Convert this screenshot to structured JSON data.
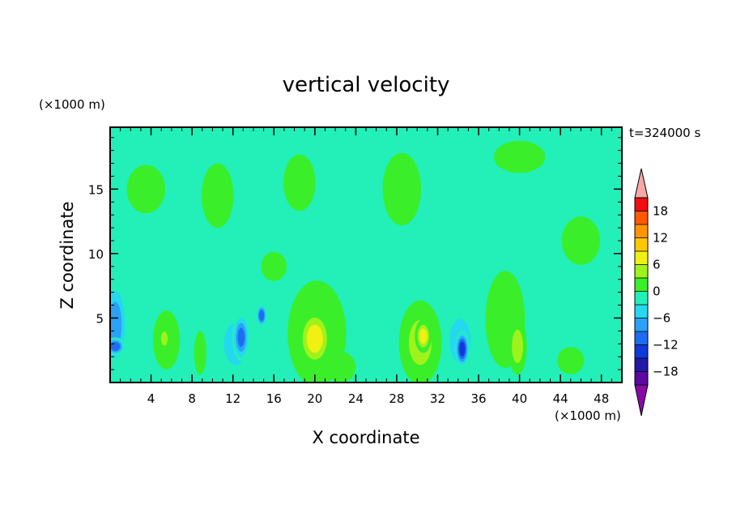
{
  "chart_data": {
    "type": "heatmap",
    "title": "vertical velocity",
    "time_label": "t=324000 s",
    "xlabel": "X coordinate",
    "ylabel": "Z coordinate",
    "x_unit": "(×1000 m)",
    "y_unit": "(×1000 m)",
    "xlim": [
      0,
      50
    ],
    "ylim": [
      0,
      19.8
    ],
    "x_ticks": [
      4,
      8,
      12,
      16,
      20,
      24,
      28,
      32,
      36,
      40,
      44,
      48
    ],
    "y_ticks": [
      5,
      10,
      15
    ],
    "colorbar": {
      "levels": [
        -21,
        -18,
        -15,
        -12,
        -9,
        -6,
        -3,
        0,
        3,
        6,
        9,
        12,
        15,
        18,
        21
      ],
      "labels": [
        -18,
        -12,
        -6,
        0,
        6,
        12,
        18
      ],
      "colors": [
        "#5a0aa0",
        "#2318a8",
        "#0f3ad8",
        "#1e6cf0",
        "#2aa2f8",
        "#24d8f0",
        "#22f0b8",
        "#3aee2a",
        "#a0f21c",
        "#f0f012",
        "#ffc800",
        "#ff9400",
        "#ff5a00",
        "#f01010"
      ],
      "under_color": "#8a0aa8",
      "over_color": "#f4a8a8"
    },
    "background_color": "#22f0b8",
    "features": [
      {
        "x": 0.5,
        "z": 4.5,
        "rx": 1.5,
        "rz": 4.2,
        "value": -10
      },
      {
        "x": 0.5,
        "z": 2.8,
        "rx": 1.1,
        "rz": 0.8,
        "value": -14
      },
      {
        "x": 5.5,
        "z": 3.3,
        "rx": 1.5,
        "rz": 2.6,
        "value": 5
      },
      {
        "x": 5.3,
        "z": 3.4,
        "rx": 0.6,
        "rz": 1.0,
        "value": 8
      },
      {
        "x": 8.8,
        "z": 2.3,
        "rx": 0.7,
        "rz": 2.0,
        "value": 4
      },
      {
        "x": 12.3,
        "z": 3.0,
        "rx": 2.4,
        "rz": 3.4,
        "value": -7
      },
      {
        "x": 12.8,
        "z": 3.5,
        "rx": 1.0,
        "rz": 2.2,
        "value": -12
      },
      {
        "x": 14.8,
        "z": 5.2,
        "rx": 0.6,
        "rz": 1.0,
        "value": -14
      },
      {
        "x": 20.2,
        "z": 3.8,
        "rx": 3.2,
        "rz": 4.6,
        "value": 6
      },
      {
        "x": 20.0,
        "z": 3.4,
        "rx": 1.9,
        "rz": 2.6,
        "value": 10
      },
      {
        "x": 22.5,
        "z": 1.2,
        "rx": 2.0,
        "rz": 1.6,
        "value": 2
      },
      {
        "x": 26.4,
        "z": 4.4,
        "rx": 2.4,
        "rz": 3.2,
        "value": -4
      },
      {
        "x": 30.3,
        "z": 3.1,
        "rx": 2.3,
        "rz": 3.6,
        "value": 7
      },
      {
        "x": 30.6,
        "z": 3.6,
        "rx": 0.9,
        "rz": 1.4,
        "value": 10
      },
      {
        "x": 34.2,
        "z": 3.2,
        "rx": 1.9,
        "rz": 3.2,
        "value": -8
      },
      {
        "x": 34.4,
        "z": 2.6,
        "rx": 0.8,
        "rz": 1.6,
        "value": -16
      },
      {
        "x": 38.6,
        "z": 4.9,
        "rx": 2.2,
        "rz": 4.3,
        "value": 5
      },
      {
        "x": 39.8,
        "z": 2.8,
        "rx": 1.0,
        "rz": 2.4,
        "value": 8
      },
      {
        "x": 42.6,
        "z": 3.8,
        "rx": 1.8,
        "rz": 2.2,
        "value": -3
      },
      {
        "x": 45.0,
        "z": 1.7,
        "rx": 1.5,
        "rz": 1.2,
        "value": 5
      },
      {
        "x": 47.5,
        "z": 3.5,
        "rx": 2.0,
        "rz": 2.5,
        "value": -2
      },
      {
        "x": 3.5,
        "z": 15.0,
        "rx": 3.0,
        "rz": 3.0,
        "value": 1
      },
      {
        "x": 10.5,
        "z": 14.5,
        "rx": 2.5,
        "rz": 4.0,
        "value": 1
      },
      {
        "x": 18.5,
        "z": 15.5,
        "rx": 2.5,
        "rz": 3.5,
        "value": 1
      },
      {
        "x": 28.5,
        "z": 15.0,
        "rx": 3.0,
        "rz": 4.5,
        "value": 1
      },
      {
        "x": 40.0,
        "z": 17.5,
        "rx": 4.0,
        "rz": 2.0,
        "value": 1
      },
      {
        "x": 16.0,
        "z": 9.0,
        "rx": 2.0,
        "rz": 1.8,
        "value": 1
      },
      {
        "x": 46.0,
        "z": 11.0,
        "rx": 3.0,
        "rz": 3.0,
        "value": 1
      }
    ]
  }
}
